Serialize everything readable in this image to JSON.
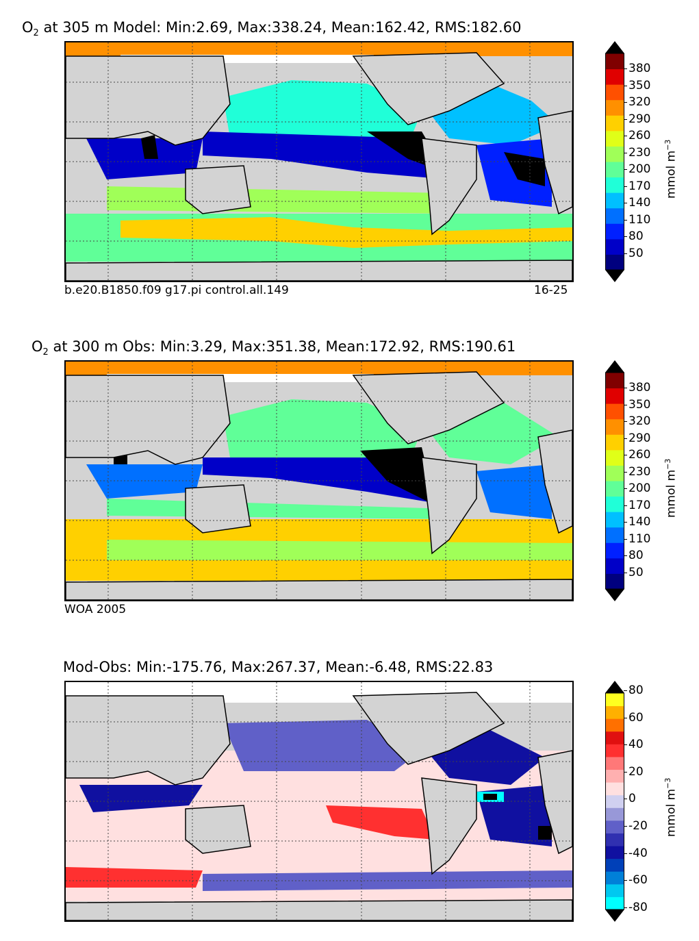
{
  "panels": [
    {
      "title_prefix": "O",
      "title_sub": "2",
      "title_rest": "at 305 m Model: Min:2.69, Max:338.24, Mean:162.42, RMS:182.60",
      "foot_left": "b.e20.B1850.f09 g17.pi control.all.149",
      "foot_right": "16-25",
      "colorbar_ticks": [
        "380",
        "350",
        "320",
        "290",
        "260",
        "230",
        "200",
        "170",
        "140",
        "110",
        "80",
        "50"
      ],
      "unit": "mmol m",
      "unit_exp": "−3"
    },
    {
      "title_prefix": "O",
      "title_sub": "2",
      "title_rest": "at 300 m Obs: Min:3.29, Max:351.38, Mean:172.92, RMS:190.61",
      "foot_left": "WOA 2005",
      "foot_right": "",
      "colorbar_ticks": [
        "380",
        "350",
        "320",
        "290",
        "260",
        "230",
        "200",
        "170",
        "140",
        "110",
        "80",
        "50"
      ],
      "unit": "mmol m",
      "unit_exp": "−3"
    },
    {
      "title": "Mod-Obs: Min:-175.76, Max:267.37, Mean:-6.48, RMS:22.83",
      "colorbar_ticks": [
        "80",
        "60",
        "40",
        "20",
        "0",
        "-20",
        "-40",
        "-60",
        "-80"
      ],
      "unit": "mmol m",
      "unit_exp": "−3"
    }
  ],
  "chart_data": [
    {
      "type": "heatmap",
      "title": "O2 at 305 m Model: Min:2.69, Max:338.24, Mean:162.42, RMS:182.60",
      "variable": "O2",
      "depth": "305 m",
      "stats": {
        "min": 2.69,
        "max": 338.24,
        "mean": 162.42,
        "rms": 182.6
      },
      "colorbar": {
        "ticks": [
          50,
          80,
          110,
          140,
          170,
          200,
          230,
          260,
          290,
          320,
          350,
          380
        ],
        "unit": "mmol m-3"
      },
      "colors": [
        "#00007f",
        "#0000c8",
        "#0020ff",
        "#0070ff",
        "#00c0ff",
        "#20ffd8",
        "#60ff98",
        "#a0ff58",
        "#e0ff18",
        "#ffd000",
        "#ff9000",
        "#ff5000",
        "#e00000",
        "#800000"
      ]
    },
    {
      "type": "heatmap",
      "title": "O2 at 300 m Obs: Min:3.29, Max:351.38, Mean:172.92, RMS:190.61",
      "variable": "O2",
      "depth": "300 m",
      "stats": {
        "min": 3.29,
        "max": 351.38,
        "mean": 172.92,
        "rms": 190.61
      },
      "colorbar": {
        "ticks": [
          50,
          80,
          110,
          140,
          170,
          200,
          230,
          260,
          290,
          320,
          350,
          380
        ],
        "unit": "mmol m-3"
      },
      "colors": [
        "#00007f",
        "#0000c8",
        "#0020ff",
        "#0070ff",
        "#00c0ff",
        "#20ffd8",
        "#60ff98",
        "#a0ff58",
        "#e0ff18",
        "#ffd000",
        "#ff9000",
        "#ff5000",
        "#e00000",
        "#800000"
      ]
    },
    {
      "type": "heatmap",
      "title": "Mod-Obs: Min:-175.76, Max:267.37, Mean:-6.48, RMS:22.83",
      "stats": {
        "min": -175.76,
        "max": 267.37,
        "mean": -6.48,
        "rms": 22.83
      },
      "colorbar": {
        "ticks": [
          -80,
          -60,
          -40,
          -20,
          0,
          20,
          40,
          60,
          80
        ],
        "unit": "mmol m-3"
      },
      "colors": [
        "#00ffff",
        "#00c8f0",
        "#0080d8",
        "#0040b8",
        "#1010a0",
        "#3030b0",
        "#6060c8",
        "#9898d8",
        "#d0d0f0",
        "#ffe0e0",
        "#ffb0b0",
        "#ff7878",
        "#ff3030",
        "#e01010",
        "#ff7000",
        "#ffb000",
        "#ffff20"
      ]
    }
  ]
}
